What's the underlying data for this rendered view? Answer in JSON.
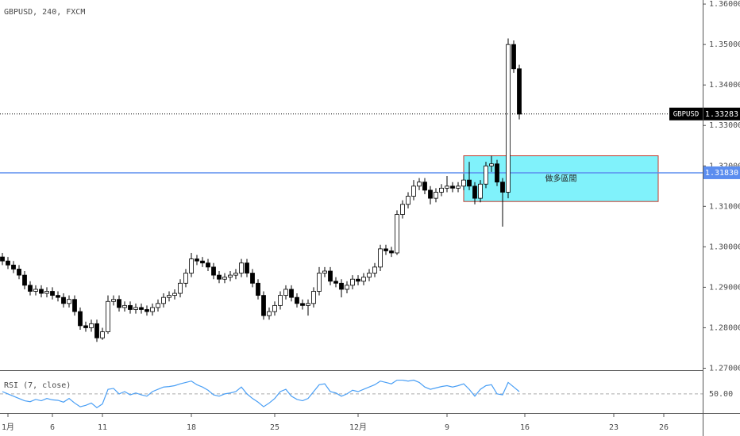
{
  "chart_data": {
    "type": "candlestick",
    "title": "GBPUSD, 240, FXCM",
    "categories": [
      null,
      "1月",
      null,
      null,
      null,
      null,
      null,
      null,
      null,
      "6",
      null,
      null,
      null,
      null,
      null,
      null,
      null,
      null,
      "11",
      null,
      null,
      null,
      null,
      null,
      null,
      null,
      null,
      null,
      null,
      null,
      null,
      null,
      null,
      null,
      "18",
      null,
      null,
      null,
      null,
      null,
      null,
      null,
      null,
      null,
      null,
      null,
      null,
      null,
      null,
      "25",
      null,
      null,
      null,
      null,
      null,
      null,
      null,
      null,
      null,
      null,
      null,
      null,
      null,
      null,
      "12月",
      null,
      null,
      null,
      null,
      null,
      null,
      null,
      null,
      null,
      null,
      null,
      null,
      null,
      null,
      null,
      "9",
      null,
      null,
      null,
      null,
      null,
      null,
      null,
      null,
      null,
      null,
      null,
      null,
      null,
      "16",
      null,
      null,
      null,
      null,
      null,
      null,
      null,
      null,
      null,
      null,
      null,
      null,
      null,
      null,
      null,
      "23",
      null,
      null,
      null,
      null,
      null,
      null,
      null,
      null,
      "26"
    ],
    "open": [
      1.2975,
      1.2965,
      1.2955,
      1.2945,
      1.293,
      1.2905,
      1.289,
      1.2895,
      1.2885,
      1.289,
      1.288,
      1.2875,
      1.286,
      1.287,
      1.284,
      1.2805,
      1.28,
      1.281,
      1.2775,
      1.279,
      1.2865,
      1.287,
      1.285,
      1.2855,
      1.2845,
      1.285,
      1.2845,
      1.284,
      1.285,
      1.286,
      1.2875,
      1.288,
      1.2885,
      1.291,
      1.2935,
      1.297,
      1.2965,
      1.296,
      1.295,
      1.293,
      1.292,
      1.2925,
      1.293,
      1.2935,
      1.296,
      1.2935,
      1.291,
      1.288,
      1.283,
      1.284,
      1.2855,
      1.288,
      1.2895,
      1.2875,
      1.286,
      1.2855,
      1.286,
      1.289,
      1.2935,
      1.294,
      1.2915,
      1.291,
      1.2895,
      1.2905,
      1.292,
      1.2915,
      1.2925,
      1.2935,
      1.295,
      1.2995,
      1.299,
      1.2985,
      1.308,
      1.3105,
      1.3125,
      1.315,
      1.316,
      1.314,
      1.312,
      1.3135,
      1.3145,
      1.315,
      1.3145,
      1.315,
      1.3165,
      1.315,
      1.312,
      1.3155,
      1.32,
      1.3205,
      1.316,
      1.3135,
      1.35,
      1.344,
      null,
      null,
      null,
      null,
      null,
      null,
      null,
      null,
      null,
      null,
      null,
      null,
      null,
      null,
      null,
      null,
      null,
      null,
      null,
      null,
      null,
      null,
      null,
      null,
      null,
      null
    ],
    "high": [
      1.2985,
      1.2975,
      1.2965,
      1.2955,
      1.294,
      1.2915,
      1.2905,
      1.2905,
      1.29,
      1.29,
      1.289,
      1.2885,
      1.288,
      1.288,
      1.285,
      1.2815,
      1.282,
      1.282,
      1.28,
      1.288,
      1.288,
      1.288,
      1.2865,
      1.2865,
      1.286,
      1.286,
      1.2855,
      1.286,
      1.287,
      1.2885,
      1.289,
      1.2895,
      1.292,
      1.2945,
      1.2985,
      1.298,
      1.2975,
      1.297,
      1.296,
      1.294,
      1.2935,
      1.294,
      1.2945,
      1.297,
      1.297,
      1.2945,
      1.292,
      1.289,
      1.285,
      1.2865,
      1.289,
      1.2905,
      1.2905,
      1.2885,
      1.287,
      1.287,
      1.29,
      1.295,
      1.295,
      1.295,
      1.2925,
      1.292,
      1.2915,
      1.293,
      1.293,
      1.2935,
      1.2945,
      1.296,
      1.3005,
      1.3005,
      1.3,
      1.309,
      1.3115,
      1.3135,
      1.3165,
      1.317,
      1.317,
      1.315,
      1.3145,
      1.3155,
      1.3175,
      1.316,
      1.316,
      1.318,
      1.321,
      1.316,
      1.3165,
      1.321,
      1.3225,
      1.3215,
      1.317,
      1.3515,
      1.351,
      1.345,
      null,
      null,
      null,
      null,
      null,
      null,
      null,
      null,
      null,
      null,
      null,
      null,
      null,
      null,
      null,
      null,
      null,
      null,
      null,
      null,
      null,
      null,
      null,
      null,
      null,
      null
    ],
    "low": [
      1.2955,
      1.2945,
      1.2935,
      1.292,
      1.2895,
      1.288,
      1.288,
      1.2875,
      1.2875,
      1.287,
      1.2865,
      1.285,
      1.285,
      1.283,
      1.2795,
      1.279,
      1.279,
      1.2765,
      1.277,
      1.2785,
      1.2855,
      1.284,
      1.284,
      1.2835,
      1.2835,
      1.2835,
      1.283,
      1.283,
      1.284,
      1.285,
      1.2865,
      1.287,
      1.2875,
      1.29,
      1.2925,
      1.2955,
      1.295,
      1.294,
      1.292,
      1.291,
      1.291,
      1.2915,
      1.292,
      1.2925,
      1.2925,
      1.29,
      1.287,
      1.282,
      1.282,
      1.283,
      1.2845,
      1.287,
      1.2865,
      1.285,
      1.2845,
      1.283,
      1.285,
      1.288,
      1.2925,
      1.2905,
      1.29,
      1.2875,
      1.2885,
      1.2895,
      1.2905,
      1.2905,
      1.2915,
      1.2925,
      1.294,
      1.298,
      1.2975,
      1.298,
      1.307,
      1.3095,
      1.3115,
      1.314,
      1.313,
      1.3105,
      1.311,
      1.3125,
      1.3135,
      1.3135,
      1.3135,
      1.314,
      1.314,
      1.3105,
      1.311,
      1.3145,
      1.3185,
      1.315,
      1.305,
      1.312,
      1.343,
      1.3315,
      null,
      null,
      null,
      null,
      null,
      null,
      null,
      null,
      null,
      null,
      null,
      null,
      null,
      null,
      null,
      null,
      null,
      null,
      null,
      null,
      null,
      null,
      null,
      null,
      null,
      null
    ],
    "close": [
      1.2965,
      1.2955,
      1.2945,
      1.293,
      1.2905,
      1.289,
      1.2895,
      1.2885,
      1.289,
      1.288,
      1.2875,
      1.286,
      1.287,
      1.284,
      1.2805,
      1.28,
      1.281,
      1.2775,
      1.279,
      1.2865,
      1.287,
      1.285,
      1.2855,
      1.2845,
      1.285,
      1.2845,
      1.284,
      1.285,
      1.286,
      1.2875,
      1.288,
      1.2885,
      1.291,
      1.2935,
      1.297,
      1.2965,
      1.296,
      1.295,
      1.293,
      1.292,
      1.2925,
      1.293,
      1.2935,
      1.296,
      1.2935,
      1.291,
      1.288,
      1.283,
      1.284,
      1.2855,
      1.288,
      1.2895,
      1.2875,
      1.286,
      1.2855,
      1.286,
      1.289,
      1.2935,
      1.294,
      1.2915,
      1.291,
      1.2895,
      1.2905,
      1.292,
      1.2915,
      1.2925,
      1.2935,
      1.295,
      1.2995,
      1.299,
      1.2985,
      1.308,
      1.3105,
      1.3125,
      1.315,
      1.316,
      1.314,
      1.312,
      1.3135,
      1.3145,
      1.315,
      1.3145,
      1.315,
      1.3165,
      1.315,
      1.312,
      1.3155,
      1.32,
      1.3205,
      1.316,
      1.3135,
      1.35,
      1.344,
      1.3328,
      null,
      null,
      null,
      null,
      null,
      null,
      null,
      null,
      null,
      null,
      null,
      null,
      null,
      null,
      null,
      null,
      null,
      null,
      null,
      null,
      null,
      null,
      null,
      null,
      null,
      null
    ],
    "up_color": "#ffffff",
    "down_color": "#000000",
    "ylim": [
      1.2699,
      1.361
    ],
    "yticks": [
      {
        "value": 1.36,
        "label": "1.36000"
      },
      {
        "value": 1.35,
        "label": "1.35000"
      },
      {
        "value": 1.34,
        "label": "1.34000"
      },
      {
        "value": 1.33,
        "label": "1.33000"
      },
      {
        "value": 1.32,
        "label": "1.32000"
      },
      {
        "value": 1.31,
        "label": "1.31000"
      },
      {
        "value": 1.3,
        "label": "1.30000"
      },
      {
        "value": 1.29,
        "label": "1.29000"
      },
      {
        "value": 1.28,
        "label": "1.28000"
      },
      {
        "value": 1.27,
        "label": "1.27000"
      }
    ],
    "current_price": {
      "symbol": "GBPUSD",
      "value": 1.33283
    },
    "level": {
      "value": 1.3183,
      "label": "1.31830",
      "color": "#5b8def"
    },
    "zone": {
      "label": "做多區間",
      "top": 1.3225,
      "bottom": 1.3112,
      "start": 83,
      "end": 118,
      "fill": "#80f2fb",
      "border": "#c0392b"
    },
    "rsi": {
      "type": "line",
      "title": "RSI (7, close)",
      "color": "#4a9ff5",
      "ylim": [
        10,
        100
      ],
      "yticks": [
        {
          "value": 50,
          "label": "50.00"
        }
      ],
      "values": [
        55,
        50,
        45,
        40,
        35,
        33,
        38,
        35,
        40,
        37,
        36,
        32,
        40,
        30,
        22,
        25,
        30,
        20,
        28,
        60,
        62,
        50,
        55,
        48,
        52,
        48,
        45,
        55,
        60,
        65,
        66,
        68,
        72,
        75,
        78,
        70,
        65,
        58,
        48,
        45,
        50,
        52,
        55,
        65,
        50,
        40,
        32,
        22,
        30,
        40,
        55,
        60,
        45,
        38,
        35,
        40,
        55,
        70,
        72,
        55,
        52,
        45,
        50,
        58,
        55,
        60,
        65,
        70,
        78,
        75,
        72,
        80,
        80,
        78,
        80,
        75,
        65,
        60,
        63,
        66,
        68,
        65,
        68,
        72,
        60,
        45,
        60,
        68,
        70,
        50,
        48,
        75,
        65,
        55,
        null,
        null,
        null,
        null,
        null,
        null,
        null,
        null,
        null,
        null,
        null,
        null,
        null,
        null,
        null,
        null,
        null,
        null,
        null,
        null,
        null,
        null,
        null,
        null,
        null,
        null
      ]
    }
  }
}
